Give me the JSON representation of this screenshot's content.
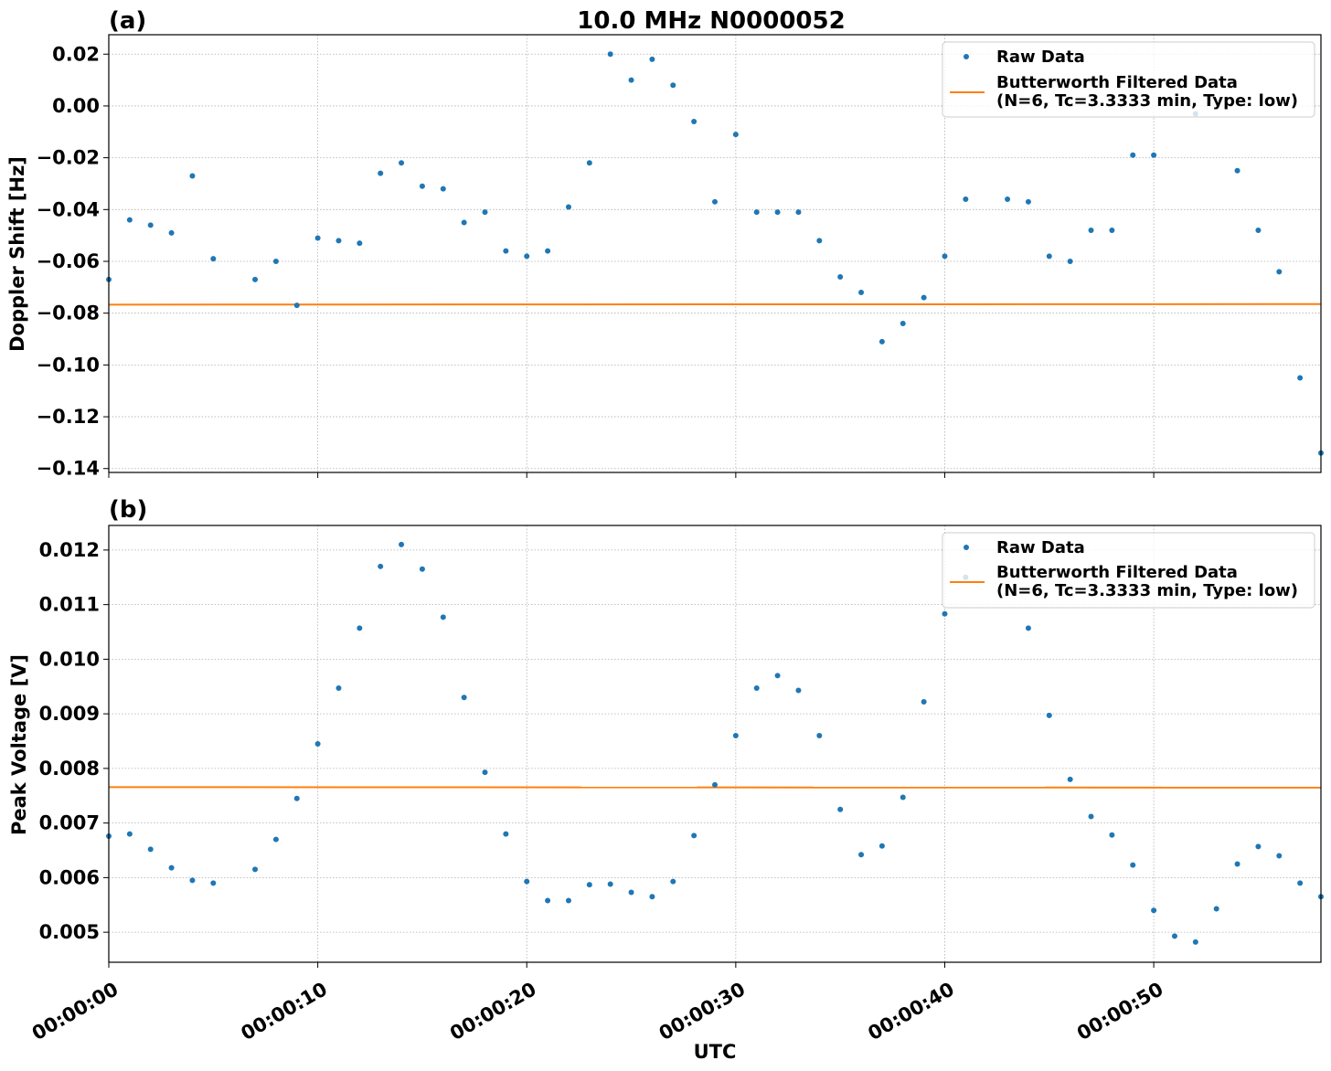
{
  "chart_data": [
    {
      "type": "scatter",
      "panel_label": "(a)",
      "title": "10.0 MHz N0000052",
      "xlabel": "",
      "ylabel": "Doppler Shift [Hz]",
      "xlim": [
        0,
        58
      ],
      "ylim": [
        -0.1415,
        0.0275
      ],
      "yticks": [
        0.02,
        0.0,
        -0.02,
        -0.04,
        -0.06,
        -0.08,
        -0.1,
        -0.12,
        -0.14
      ],
      "ytick_labels": [
        "0.02",
        "0.00",
        "−0.02",
        "−0.04",
        "−0.06",
        "−0.08",
        "−0.10",
        "−0.12",
        "−0.14"
      ],
      "grid": true,
      "legend_position": "top-right",
      "series": [
        {
          "name": "Raw Data",
          "color": "#1f77b4",
          "x": [
            0,
            1,
            2,
            3,
            4,
            5,
            7,
            8,
            9,
            10,
            11,
            12,
            13,
            14,
            15,
            16,
            17,
            18,
            19,
            20,
            21,
            22,
            23,
            24,
            25,
            26,
            27,
            28,
            29,
            30,
            31,
            32,
            33,
            34,
            35,
            36,
            37,
            38,
            39,
            40,
            41,
            43,
            44,
            45,
            46,
            47,
            48,
            49,
            50,
            52,
            54,
            55,
            56,
            57,
            58
          ],
          "y": [
            -0.067,
            -0.044,
            -0.046,
            -0.049,
            -0.027,
            -0.059,
            -0.067,
            -0.06,
            -0.077,
            -0.051,
            -0.052,
            -0.053,
            -0.026,
            -0.022,
            -0.031,
            -0.032,
            -0.045,
            -0.041,
            -0.056,
            -0.058,
            -0.056,
            -0.039,
            -0.022,
            0.02,
            0.01,
            0.018,
            0.008,
            -0.006,
            -0.037,
            -0.011,
            -0.041,
            -0.041,
            -0.041,
            -0.052,
            -0.066,
            -0.072,
            -0.091,
            -0.084,
            -0.074,
            -0.058,
            -0.036,
            -0.036,
            -0.037,
            -0.058,
            -0.06,
            -0.048,
            -0.048,
            -0.019,
            -0.019,
            -0.003,
            -0.025,
            -0.048,
            -0.064,
            -0.105,
            -0.134
          ]
        },
        {
          "name": "Butterworth Filtered Data\n(N=6, Tc=3.3333 min, Type: low)",
          "color": "#ff7f0e",
          "x": [
            0,
            58
          ],
          "y": [
            -0.0767,
            -0.0765
          ]
        }
      ]
    },
    {
      "type": "scatter",
      "panel_label": "(b)",
      "title": "",
      "xlabel": "UTC",
      "ylabel": "Peak Voltage [V]",
      "xlim": [
        0,
        58
      ],
      "ylim": [
        0.00445,
        0.01245
      ],
      "xticks": [
        0,
        10,
        20,
        30,
        40,
        50
      ],
      "xtick_labels": [
        "00:00:00",
        "00:00:10",
        "00:00:20",
        "00:00:30",
        "00:00:40",
        "00:00:50"
      ],
      "yticks": [
        0.012,
        0.011,
        0.01,
        0.009,
        0.008,
        0.007,
        0.006,
        0.005
      ],
      "ytick_labels": [
        "0.012",
        "0.011",
        "0.010",
        "0.009",
        "0.008",
        "0.007",
        "0.006",
        "0.005"
      ],
      "grid": true,
      "legend_position": "top-right",
      "series": [
        {
          "name": "Raw Data",
          "color": "#1f77b4",
          "x": [
            0,
            1,
            2,
            3,
            4,
            5,
            7,
            8,
            9,
            10,
            11,
            12,
            13,
            14,
            15,
            16,
            17,
            18,
            19,
            20,
            21,
            22,
            23,
            24,
            25,
            26,
            27,
            28,
            29,
            30,
            31,
            32,
            33,
            34,
            35,
            36,
            37,
            38,
            39,
            40,
            41,
            44,
            45,
            46,
            47,
            48,
            49,
            50,
            51,
            52,
            53,
            54,
            55,
            56,
            57,
            58
          ],
          "y": [
            0.00676,
            0.0068,
            0.00652,
            0.00618,
            0.00595,
            0.0059,
            0.00615,
            0.0067,
            0.00745,
            0.00845,
            0.00947,
            0.01057,
            0.0117,
            0.0121,
            0.01165,
            0.01077,
            0.0093,
            0.00793,
            0.0068,
            0.00593,
            0.00558,
            0.00558,
            0.00587,
            0.00588,
            0.00573,
            0.00565,
            0.00593,
            0.00677,
            0.0077,
            0.0086,
            0.00947,
            0.0097,
            0.00943,
            0.0086,
            0.00725,
            0.00642,
            0.00658,
            0.00747,
            0.00922,
            0.01083,
            0.0115,
            0.01057,
            0.00897,
            0.0078,
            0.00712,
            0.00678,
            0.00623,
            0.0054,
            0.00493,
            0.00482,
            0.00543,
            0.00625,
            0.00657,
            0.0064,
            0.0059,
            0.00565
          ]
        },
        {
          "name": "Butterworth Filtered Data\n(N=6, Tc=3.3333 min, Type: low)",
          "color": "#ff7f0e",
          "x": [
            0,
            58
          ],
          "y": [
            0.007657,
            0.007648
          ]
        }
      ]
    }
  ]
}
